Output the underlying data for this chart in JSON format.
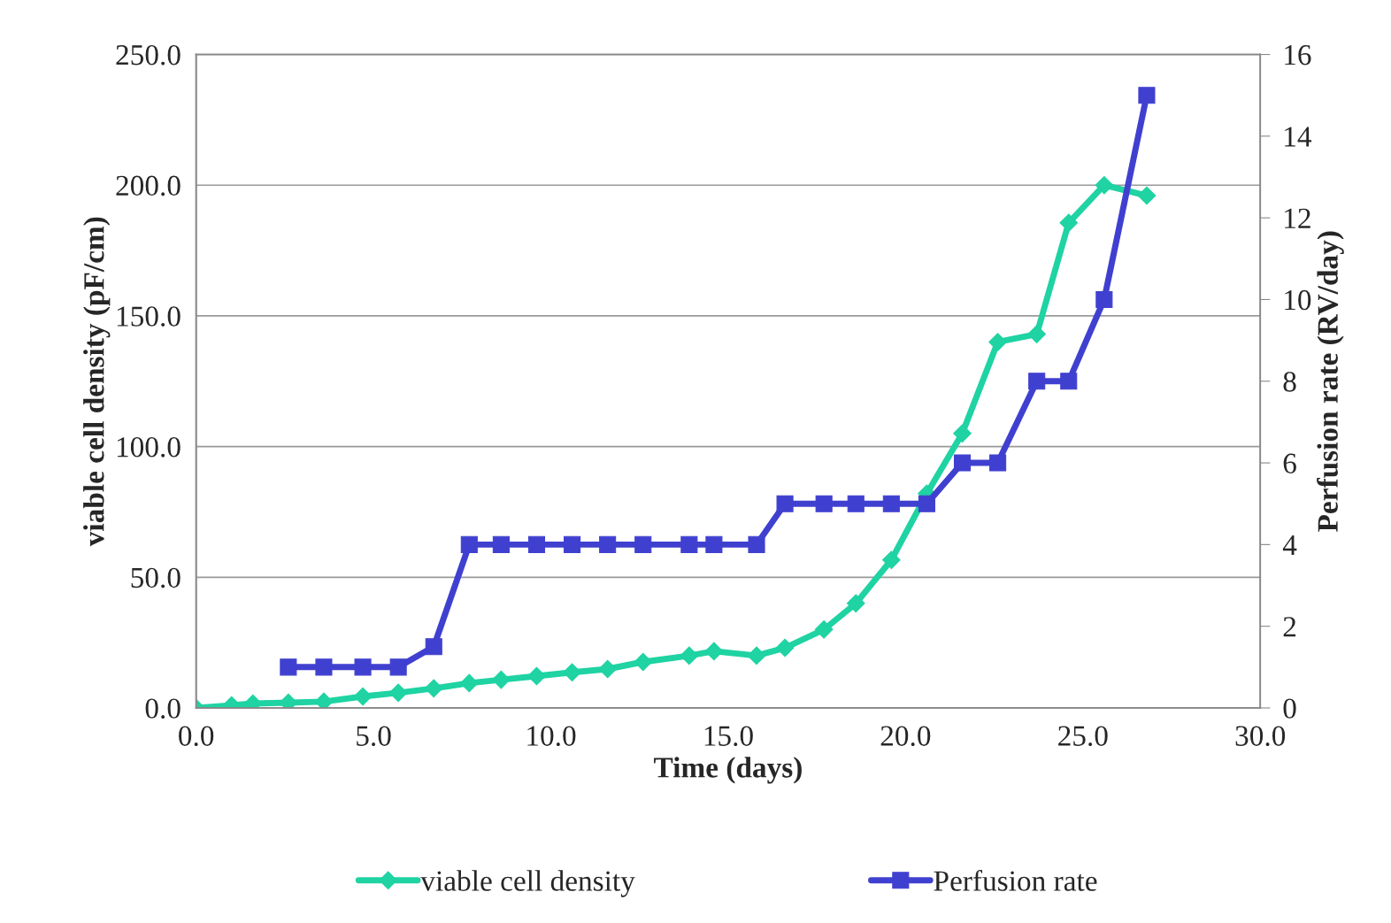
{
  "chart_data": {
    "type": "line",
    "xlabel": "Time (days)",
    "ylabel": "viable cell density (pF/cm)",
    "y2label": "Perfusion rate (RV/day)",
    "xlim": [
      0,
      30
    ],
    "xticks": [
      {
        "value": 0,
        "label": "0.0"
      },
      {
        "value": 5,
        "label": "5.0"
      },
      {
        "value": 10,
        "label": "10.0"
      },
      {
        "value": 15,
        "label": "15.0"
      },
      {
        "value": 20,
        "label": "20.0"
      },
      {
        "value": 25,
        "label": "25.0"
      },
      {
        "value": 30,
        "label": "30.0"
      }
    ],
    "ylim": [
      0,
      250
    ],
    "yticks": [
      {
        "value": 0,
        "label": "0.0"
      },
      {
        "value": 50,
        "label": "50.0"
      },
      {
        "value": 100,
        "label": "100.0"
      },
      {
        "value": 150,
        "label": "150.0"
      },
      {
        "value": 200,
        "label": "200.0"
      },
      {
        "value": 250,
        "label": "250.0"
      }
    ],
    "y2lim": [
      0,
      16
    ],
    "y2ticks": [
      0,
      2,
      4,
      6,
      8,
      10,
      12,
      14,
      16
    ],
    "grid": "y",
    "legend": "bottom",
    "series": [
      {
        "name": "viable cell density",
        "color": "#1fd3a3",
        "marker": "diamond",
        "x": [
          0,
          1.0,
          1.6,
          2.6,
          3.6,
          4.7,
          5.7,
          6.7,
          7.7,
          8.6,
          9.6,
          10.6,
          11.6,
          12.6,
          13.9,
          14.6,
          15.8,
          16.6,
          17.7,
          18.6,
          19.6,
          20.6,
          21.6,
          22.6,
          23.7,
          24.6,
          25.6,
          26.8
        ],
        "values": [
          0,
          1,
          1.7,
          2,
          2.4,
          4.4,
          5.8,
          7.5,
          9.5,
          10.8,
          12.2,
          13.6,
          14.9,
          17.6,
          20,
          21.7,
          20,
          23,
          30,
          40,
          56.6,
          82,
          105,
          140,
          143,
          185.6,
          200,
          196
        ]
      },
      {
        "name": "Perfusion rate",
        "color": "#4040d0",
        "marker": "square",
        "axis": "y2",
        "x": [
          2.6,
          3.6,
          4.7,
          5.7,
          6.7,
          7.7,
          8.6,
          9.6,
          10.6,
          11.6,
          12.6,
          13.9,
          14.6,
          15.8,
          16.6,
          17.7,
          18.6,
          19.6,
          20.6,
          21.6,
          22.6,
          23.7,
          24.6,
          25.6,
          26.8
        ],
        "values": [
          1,
          1,
          1,
          1,
          1.5,
          4,
          4,
          4,
          4,
          4,
          4,
          4,
          4,
          4,
          5,
          5,
          5,
          5,
          5,
          6,
          6,
          8,
          8,
          10,
          15
        ]
      }
    ]
  }
}
